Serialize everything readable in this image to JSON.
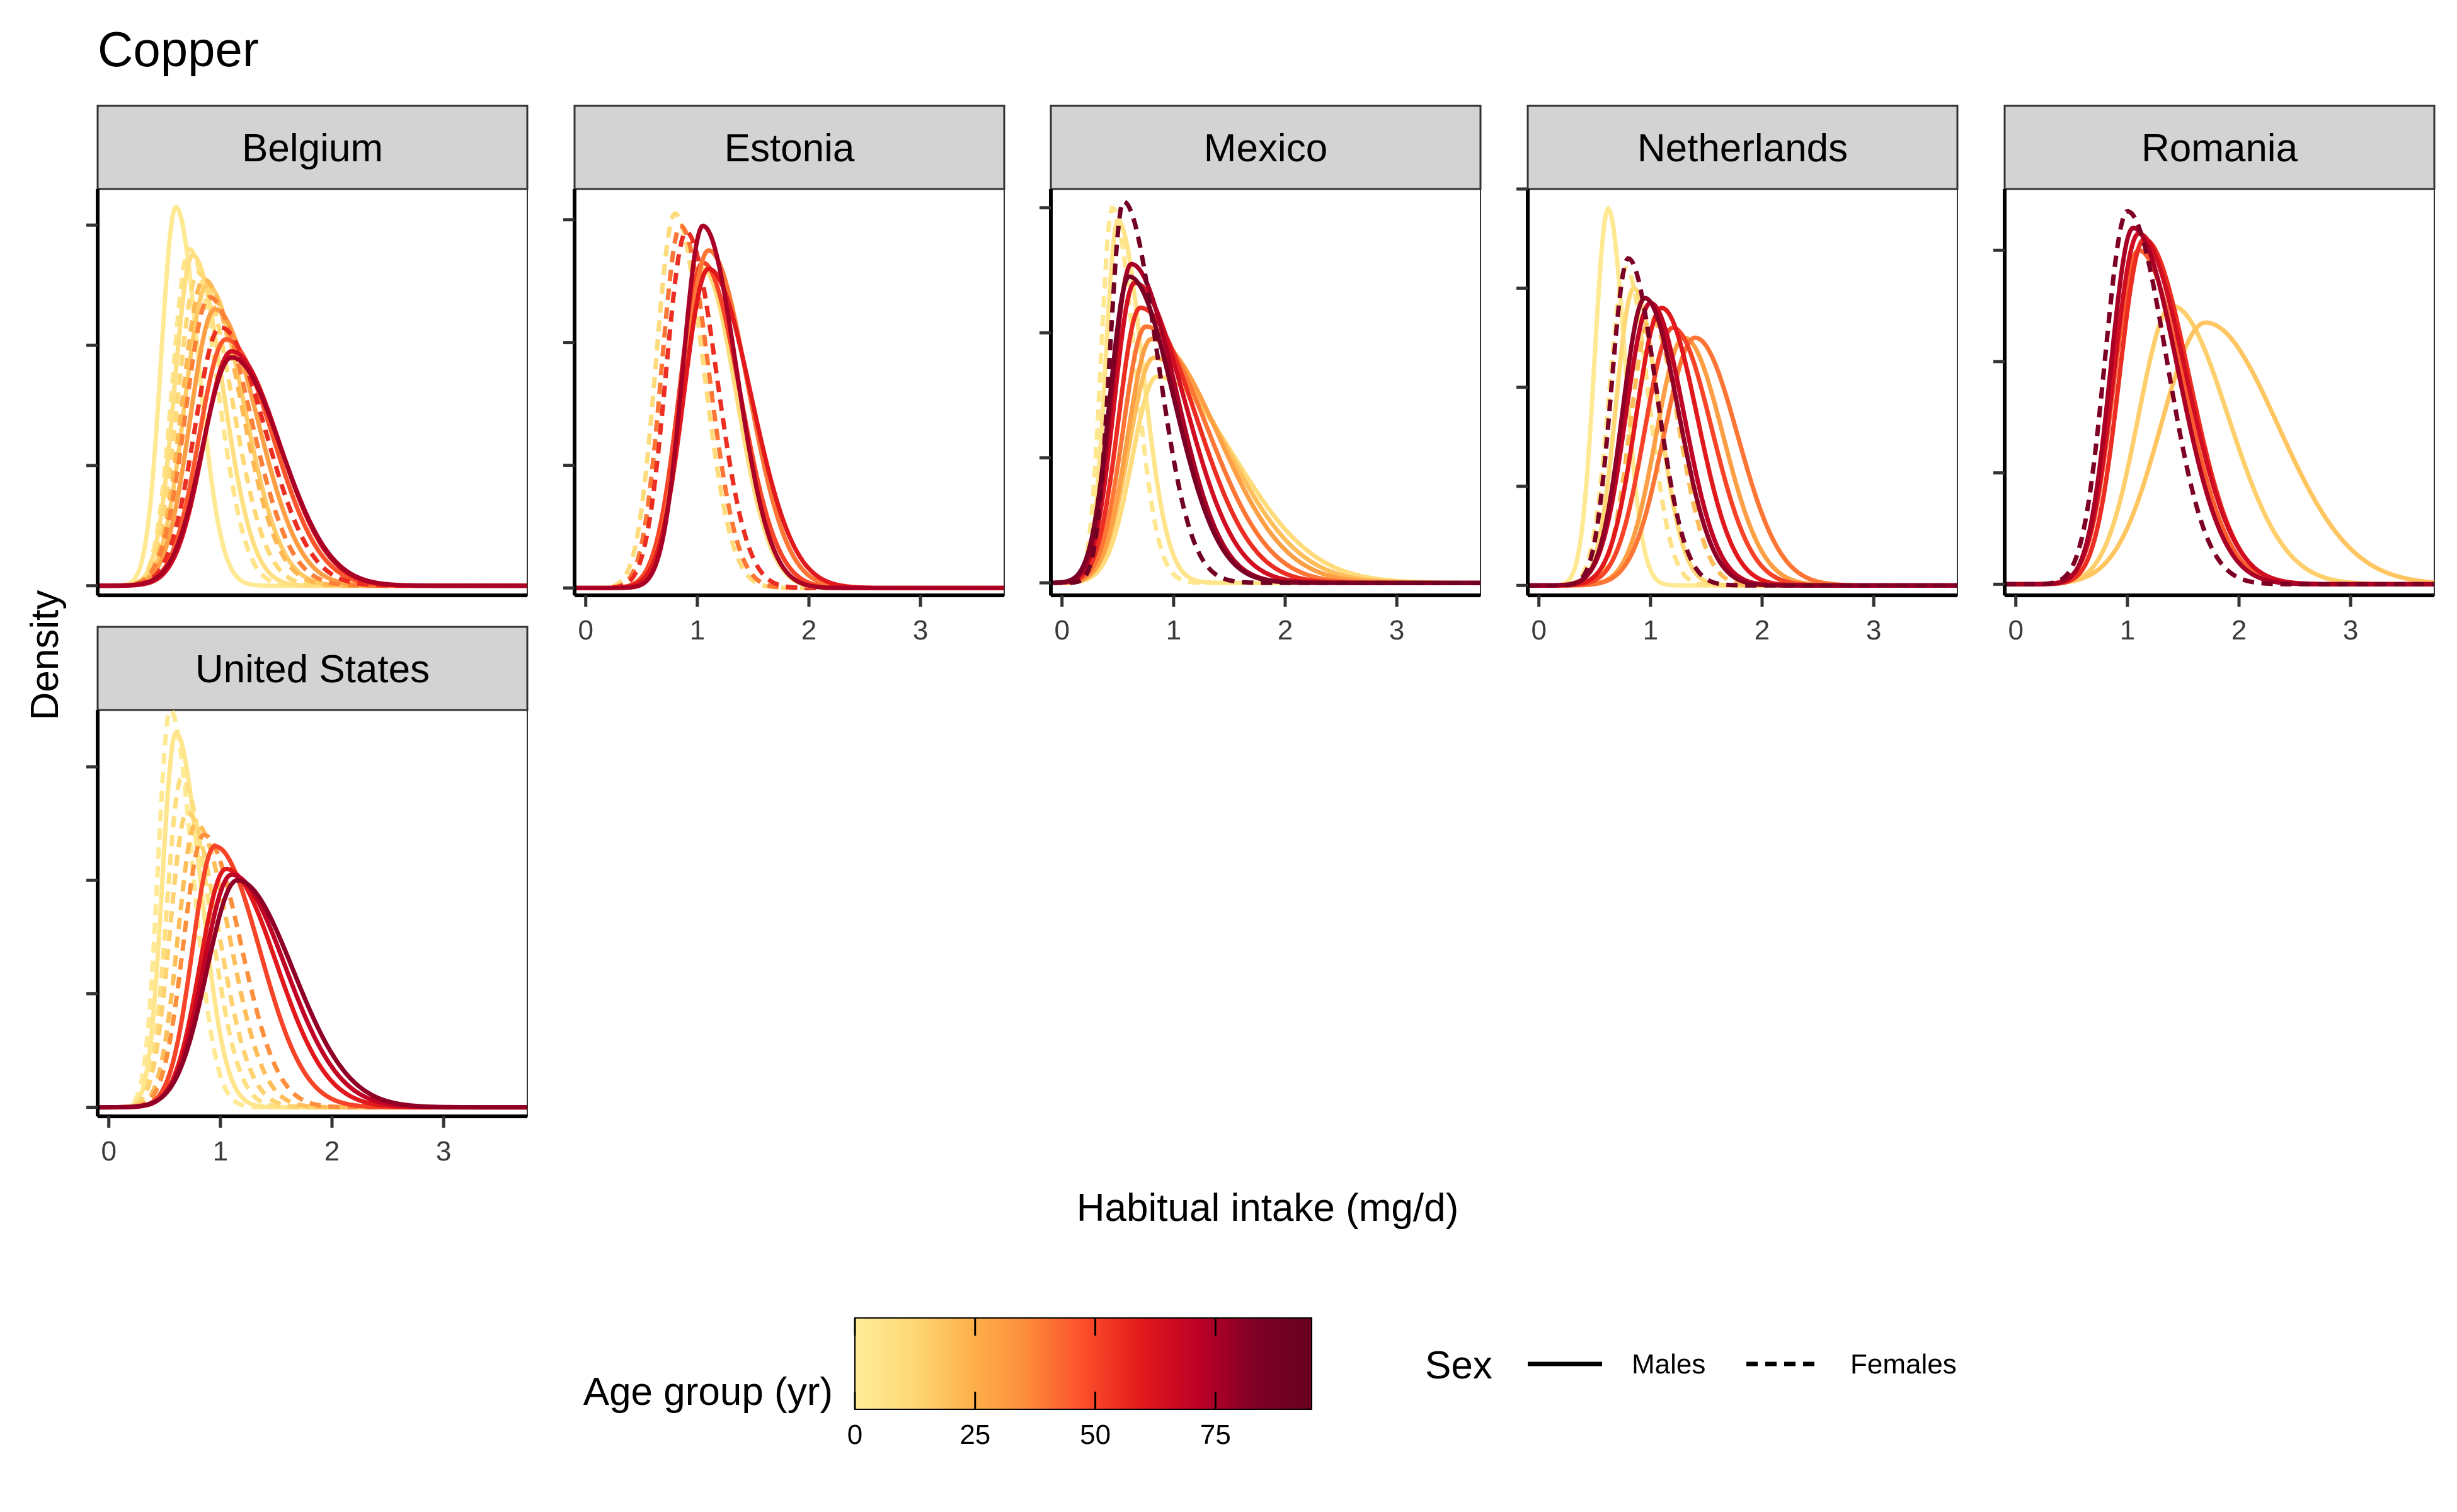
{
  "title": "Copper",
  "xlabel": "Habitual intake (mg/d)",
  "ylabel": "Density",
  "legend": {
    "age_title": "Age group (yr)",
    "age_ticks": [
      "0",
      "25",
      "50",
      "75"
    ],
    "age_tick_values": [
      0,
      25,
      50,
      75
    ],
    "age_range": [
      0,
      95
    ],
    "age_colors": [
      "#ffec99",
      "#fed976",
      "#feb24c",
      "#fd8d3c",
      "#fc4e2a",
      "#e31a1c",
      "#bd0026",
      "#800026",
      "#67001f"
    ],
    "sex_title": "Sex",
    "sex_items": [
      {
        "label": "Males",
        "dash": "solid"
      },
      {
        "label": "Females",
        "dash": "dashed"
      }
    ]
  },
  "chart_data": {
    "type": "line",
    "title": "Copper",
    "xlabel": "Habitual intake (mg/d)",
    "ylabel": "Density",
    "x_ticks": [
      "0",
      "1",
      "2",
      "3"
    ],
    "xlim": [
      -0.1,
      3.75
    ],
    "y_tick_labels_shown": false,
    "panels": [
      {
        "facet": "Belgium",
        "y_ticks": [
          0,
          1,
          2,
          3
        ],
        "ylim": [
          -0.08,
          3.3
        ],
        "series": [
          {
            "age": 2,
            "sex": "Males",
            "peak_x": 0.6,
            "peak_y": 3.15,
            "sd_left": 0.13,
            "sd_right": 0.2
          },
          {
            "age": 5,
            "sex": "Females",
            "peak_x": 0.72,
            "peak_y": 2.8,
            "sd_left": 0.15,
            "sd_right": 0.25
          },
          {
            "age": 8,
            "sex": "Males",
            "peak_x": 0.75,
            "peak_y": 2.75,
            "sd_left": 0.16,
            "sd_right": 0.27
          },
          {
            "age": 12,
            "sex": "Females",
            "peak_x": 0.8,
            "peak_y": 2.6,
            "sd_left": 0.18,
            "sd_right": 0.3
          },
          {
            "age": 16,
            "sex": "Males",
            "peak_x": 0.88,
            "peak_y": 2.5,
            "sd_left": 0.2,
            "sd_right": 0.33
          },
          {
            "age": 22,
            "sex": "Females",
            "peak_x": 0.85,
            "peak_y": 2.55,
            "sd_left": 0.19,
            "sd_right": 0.33
          },
          {
            "age": 30,
            "sex": "Males",
            "peak_x": 0.95,
            "peak_y": 2.3,
            "sd_left": 0.22,
            "sd_right": 0.38
          },
          {
            "age": 38,
            "sex": "Females",
            "peak_x": 0.9,
            "peak_y": 2.4,
            "sd_left": 0.21,
            "sd_right": 0.36
          },
          {
            "age": 46,
            "sex": "Males",
            "peak_x": 1.05,
            "peak_y": 2.05,
            "sd_left": 0.24,
            "sd_right": 0.42
          },
          {
            "age": 55,
            "sex": "Females",
            "peak_x": 1.0,
            "peak_y": 2.15,
            "sd_left": 0.23,
            "sd_right": 0.4
          },
          {
            "age": 65,
            "sex": "Males",
            "peak_x": 1.1,
            "peak_y": 1.95,
            "sd_left": 0.25,
            "sd_right": 0.43
          },
          {
            "age": 75,
            "sex": "Males",
            "peak_x": 1.1,
            "peak_y": 1.9,
            "sd_left": 0.26,
            "sd_right": 0.44
          }
        ]
      },
      {
        "facet": "Estonia",
        "y_ticks": [
          0,
          1,
          2,
          3
        ],
        "ylim": [
          -0.06,
          3.25
        ],
        "series": [
          {
            "age": 10,
            "sex": "Females",
            "peak_x": 0.8,
            "peak_y": 3.05,
            "sd_left": 0.17,
            "sd_right": 0.25
          },
          {
            "age": 40,
            "sex": "Females",
            "peak_x": 0.85,
            "peak_y": 2.95,
            "sd_left": 0.17,
            "sd_right": 0.25
          },
          {
            "age": 55,
            "sex": "Females",
            "peak_x": 0.9,
            "peak_y": 2.9,
            "sd_left": 0.18,
            "sd_right": 0.27
          },
          {
            "age": 10,
            "sex": "Males",
            "peak_x": 1.05,
            "peak_y": 2.6,
            "sd_left": 0.2,
            "sd_right": 0.3
          },
          {
            "age": 50,
            "sex": "Males",
            "peak_x": 1.05,
            "peak_y": 2.65,
            "sd_left": 0.21,
            "sd_right": 0.33
          },
          {
            "age": 40,
            "sex": "Males",
            "peak_x": 1.1,
            "peak_y": 2.75,
            "sd_left": 0.22,
            "sd_right": 0.35
          },
          {
            "age": 60,
            "sex": "Males",
            "peak_x": 1.1,
            "peak_y": 2.6,
            "sd_left": 0.22,
            "sd_right": 0.38
          },
          {
            "age": 75,
            "sex": "Males",
            "peak_x": 1.05,
            "peak_y": 2.95,
            "sd_left": 0.18,
            "sd_right": 0.3
          }
        ]
      },
      {
        "facet": "Mexico",
        "y_ticks": [
          0,
          1,
          2,
          3
        ],
        "ylim": [
          -0.1,
          3.15
        ],
        "series": [
          {
            "age": 3,
            "sex": "Females",
            "peak_x": 0.45,
            "peak_y": 3.0,
            "sd_left": 0.1,
            "sd_right": 0.2
          },
          {
            "age": 5,
            "sex": "Males",
            "peak_x": 0.5,
            "peak_y": 2.9,
            "sd_left": 0.11,
            "sd_right": 0.22
          },
          {
            "age": 10,
            "sex": "Males",
            "peak_x": 0.85,
            "peak_y": 1.65,
            "sd_left": 0.22,
            "sd_right": 0.7
          },
          {
            "age": 20,
            "sex": "Males",
            "peak_x": 0.82,
            "peak_y": 1.8,
            "sd_left": 0.22,
            "sd_right": 0.65
          },
          {
            "age": 30,
            "sex": "Males",
            "peak_x": 0.8,
            "peak_y": 1.95,
            "sd_left": 0.21,
            "sd_right": 0.6
          },
          {
            "age": 40,
            "sex": "Males",
            "peak_x": 0.75,
            "peak_y": 2.05,
            "sd_left": 0.2,
            "sd_right": 0.55
          },
          {
            "age": 55,
            "sex": "Males",
            "peak_x": 0.7,
            "peak_y": 2.2,
            "sd_left": 0.19,
            "sd_right": 0.5
          },
          {
            "age": 65,
            "sex": "Males",
            "peak_x": 0.65,
            "peak_y": 2.4,
            "sd_left": 0.18,
            "sd_right": 0.45
          },
          {
            "age": 75,
            "sex": "Males",
            "peak_x": 0.62,
            "peak_y": 2.55,
            "sd_left": 0.17,
            "sd_right": 0.4
          },
          {
            "age": 85,
            "sex": "Males",
            "peak_x": 0.6,
            "peak_y": 2.45,
            "sd_left": 0.17,
            "sd_right": 0.4
          },
          {
            "age": 90,
            "sex": "Females",
            "peak_x": 0.55,
            "peak_y": 3.05,
            "sd_left": 0.12,
            "sd_right": 0.3
          }
        ]
      },
      {
        "facet": "Netherlands",
        "y_ticks": [
          0,
          1,
          2,
          3,
          4
        ],
        "ylim": [
          -0.1,
          4.0
        ],
        "series": [
          {
            "age": 2,
            "sex": "Males",
            "peak_x": 0.62,
            "peak_y": 3.8,
            "sd_left": 0.12,
            "sd_right": 0.15
          },
          {
            "age": 6,
            "sex": "Females",
            "peak_x": 0.78,
            "peak_y": 3.2,
            "sd_left": 0.15,
            "sd_right": 0.2
          },
          {
            "age": 12,
            "sex": "Males",
            "peak_x": 0.85,
            "peak_y": 3.0,
            "sd_left": 0.16,
            "sd_right": 0.22
          },
          {
            "age": 20,
            "sex": "Females",
            "peak_x": 1.0,
            "peak_y": 2.7,
            "sd_left": 0.18,
            "sd_right": 0.25
          },
          {
            "age": 30,
            "sex": "Males",
            "peak_x": 1.3,
            "peak_y": 2.5,
            "sd_left": 0.25,
            "sd_right": 0.35
          },
          {
            "age": 40,
            "sex": "Males",
            "peak_x": 1.4,
            "peak_y": 2.5,
            "sd_left": 0.28,
            "sd_right": 0.38
          },
          {
            "age": 50,
            "sex": "Males",
            "peak_x": 1.2,
            "peak_y": 2.6,
            "sd_left": 0.25,
            "sd_right": 0.35
          },
          {
            "age": 60,
            "sex": "Males",
            "peak_x": 1.1,
            "peak_y": 2.8,
            "sd_left": 0.23,
            "sd_right": 0.32
          },
          {
            "age": 70,
            "sex": "Males",
            "peak_x": 1.0,
            "peak_y": 2.85,
            "sd_left": 0.22,
            "sd_right": 0.3
          },
          {
            "age": 80,
            "sex": "Males",
            "peak_x": 0.95,
            "peak_y": 2.9,
            "sd_left": 0.2,
            "sd_right": 0.3
          },
          {
            "age": 85,
            "sex": "Females",
            "peak_x": 0.8,
            "peak_y": 3.3,
            "sd_left": 0.15,
            "sd_right": 0.25
          }
        ]
      },
      {
        "facet": "Romania",
        "y_ticks": [
          0,
          1,
          2,
          3
        ],
        "ylim": [
          -0.1,
          3.55
        ],
        "series": [
          {
            "age": 15,
            "sex": "Males",
            "peak_x": 1.4,
            "peak_y": 2.5,
            "sd_left": 0.3,
            "sd_right": 0.5
          },
          {
            "age": 18,
            "sex": "Males",
            "peak_x": 1.7,
            "peak_y": 2.35,
            "sd_left": 0.4,
            "sd_right": 0.65
          },
          {
            "age": 30,
            "sex": "Females",
            "peak_x": 1.0,
            "peak_y": 3.35,
            "sd_left": 0.2,
            "sd_right": 0.35
          },
          {
            "age": 45,
            "sex": "Males",
            "peak_x": 1.1,
            "peak_y": 3.0,
            "sd_left": 0.22,
            "sd_right": 0.4
          },
          {
            "age": 55,
            "sex": "Males",
            "peak_x": 1.15,
            "peak_y": 3.1,
            "sd_left": 0.22,
            "sd_right": 0.4
          },
          {
            "age": 65,
            "sex": "Males",
            "peak_x": 1.1,
            "peak_y": 3.15,
            "sd_left": 0.22,
            "sd_right": 0.42
          },
          {
            "age": 75,
            "sex": "Males",
            "peak_x": 1.05,
            "peak_y": 3.2,
            "sd_left": 0.2,
            "sd_right": 0.4
          },
          {
            "age": 85,
            "sex": "Females",
            "peak_x": 1.0,
            "peak_y": 3.35,
            "sd_left": 0.2,
            "sd_right": 0.35
          }
        ]
      },
      {
        "facet": "United States",
        "y_ticks": [
          0,
          1,
          2,
          3
        ],
        "ylim": [
          -0.08,
          3.5
        ],
        "series": [
          {
            "age": 2,
            "sex": "Females",
            "peak_x": 0.55,
            "peak_y": 3.5,
            "sd_left": 0.11,
            "sd_right": 0.2
          },
          {
            "age": 4,
            "sex": "Males",
            "peak_x": 0.6,
            "peak_y": 3.3,
            "sd_left": 0.12,
            "sd_right": 0.22
          },
          {
            "age": 8,
            "sex": "Females",
            "peak_x": 0.65,
            "peak_y": 2.9,
            "sd_left": 0.13,
            "sd_right": 0.25
          },
          {
            "age": 14,
            "sex": "Females",
            "peak_x": 0.7,
            "peak_y": 2.6,
            "sd_left": 0.15,
            "sd_right": 0.28
          },
          {
            "age": 20,
            "sex": "Females",
            "peak_x": 0.78,
            "peak_y": 2.5,
            "sd_left": 0.16,
            "sd_right": 0.3
          },
          {
            "age": 35,
            "sex": "Females",
            "peak_x": 0.85,
            "peak_y": 2.4,
            "sd_left": 0.18,
            "sd_right": 0.33
          },
          {
            "age": 50,
            "sex": "Males",
            "peak_x": 0.95,
            "peak_y": 2.3,
            "sd_left": 0.2,
            "sd_right": 0.4
          },
          {
            "age": 60,
            "sex": "Males",
            "peak_x": 1.05,
            "peak_y": 2.1,
            "sd_left": 0.23,
            "sd_right": 0.45
          },
          {
            "age": 70,
            "sex": "Males",
            "peak_x": 1.1,
            "peak_y": 2.05,
            "sd_left": 0.25,
            "sd_right": 0.48
          },
          {
            "age": 80,
            "sex": "Males",
            "peak_x": 1.15,
            "peak_y": 2.0,
            "sd_left": 0.27,
            "sd_right": 0.5
          }
        ]
      }
    ]
  }
}
